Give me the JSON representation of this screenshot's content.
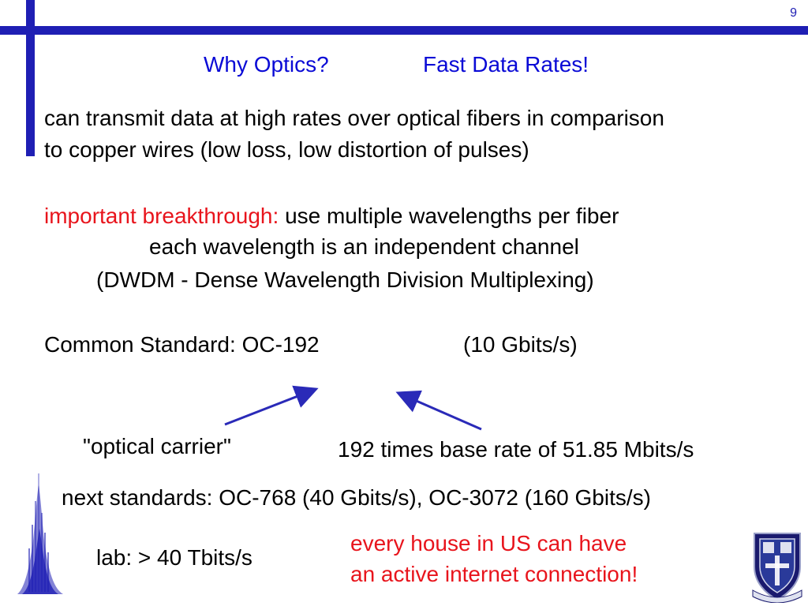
{
  "page_number": "9",
  "title": {
    "left": "Why Optics?",
    "right": "Fast Data Rates!"
  },
  "para1": {
    "line1": "can transmit data at high rates over optical fibers in comparison",
    "line2": "to copper wires (low loss, low distortion of pulses)"
  },
  "para2": {
    "highlight": "important breakthrough:",
    "rest": "use multiple wavelengths per fiber",
    "line2": "each wavelength is an independent channel",
    "line3": "(DWDM - Dense Wavelength Division Multiplexing)"
  },
  "standard": {
    "label": "Common Standard:  OC-192",
    "rate": "(10 Gbits/s)"
  },
  "annotations": {
    "optical_carrier": "\"optical carrier\"",
    "base_rate": "192 times base rate of 51.85 Mbits/s"
  },
  "next_standards": "next standards:  OC-768 (40 Gbits/s), OC-3072 (160 Gbits/s)",
  "lab": "lab: > 40 Tbits/s",
  "house": {
    "line1": "every house in US can have",
    "line2": "an active internet connection!"
  },
  "colors": {
    "accent": "#1f1fb4",
    "title": "#0a0ad6",
    "highlight": "#e8141c",
    "arrow": "#2a2ab8"
  }
}
